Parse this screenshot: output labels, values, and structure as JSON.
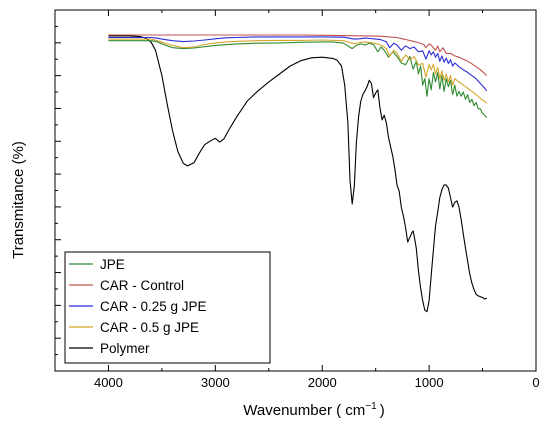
{
  "chart_data": {
    "type": "line",
    "title": "",
    "xlabel": "Wavenumber ( cm",
    "xlabel_sup": "−1",
    "xlabel_tail": ")",
    "ylabel": "Transmitance (%)",
    "xlim": [
      4500,
      0
    ],
    "ylim": [
      0,
      100
    ],
    "x_ticks": [
      4000,
      3000,
      2000,
      1000,
      0
    ],
    "y_ticks_shown": false,
    "grid": false,
    "legend_position": "bottom-left",
    "series": [
      {
        "name": "JPE",
        "color": "#2e8b2e",
        "x": [
          4000,
          3800,
          3600,
          3550,
          3500,
          3400,
          3300,
          3200,
          3000,
          2800,
          2600,
          2400,
          2200,
          2000,
          1900,
          1800,
          1720,
          1680,
          1640,
          1600,
          1560,
          1520,
          1480,
          1450,
          1420,
          1380,
          1340,
          1300,
          1260,
          1220,
          1180,
          1150,
          1120,
          1100,
          1080,
          1060,
          1040,
          1020,
          1000,
          980,
          960,
          940,
          920,
          900,
          880,
          860,
          840,
          820,
          800,
          780,
          760,
          740,
          720,
          700,
          680,
          660,
          640,
          620,
          600,
          580,
          560,
          540,
          520,
          500,
          480,
          460
        ],
        "y": [
          96,
          96,
          96,
          95.7,
          95,
          93.8,
          93.5,
          93.7,
          94.5,
          95,
          95.2,
          95.3,
          95.5,
          95.6,
          95.6,
          95.2,
          93.5,
          94.5,
          95,
          94.6,
          95.2,
          94.8,
          92.5,
          94,
          93,
          90.8,
          92.5,
          91,
          89,
          88.4,
          91,
          87,
          89.5,
          85.5,
          88,
          82,
          84,
          78.5,
          84,
          80.5,
          86,
          83,
          86,
          80.8,
          85,
          80,
          84,
          81.5,
          83.5,
          79,
          82,
          78.5,
          80,
          78.5,
          79.8,
          77.5,
          79,
          76.5,
          77.5,
          75.5,
          76.5,
          74.5,
          74.5,
          73,
          72.5,
          71.7
        ]
      },
      {
        "name": "CAR - Control",
        "color": "#c0504d",
        "x": [
          4000,
          3800,
          3600,
          3400,
          3200,
          3000,
          2800,
          2600,
          2400,
          2200,
          2000,
          1800,
          1600,
          1450,
          1380,
          1300,
          1250,
          1200,
          1150,
          1100,
          1050,
          1030,
          1000,
          980,
          940,
          920,
          900,
          870,
          840,
          800,
          760,
          720,
          680,
          640,
          600,
          560,
          520,
          480,
          460
        ],
        "y": [
          97.8,
          97.8,
          97.8,
          97.8,
          97.8,
          97.8,
          97.8,
          97.8,
          97.8,
          97.8,
          97.7,
          97.6,
          97.5,
          97.4,
          97.2,
          97,
          96.6,
          96.2,
          95.8,
          95.4,
          94.8,
          93.8,
          95,
          94.6,
          93,
          94.3,
          92.5,
          93.8,
          92,
          92,
          91.2,
          90.8,
          90.2,
          89.5,
          88.7,
          87.8,
          86.8,
          85.6,
          85
        ]
      },
      {
        "name": "CAR - 0.25 g JPE",
        "color": "#2b2bd8",
        "x": [
          4000,
          3800,
          3600,
          3550,
          3500,
          3400,
          3300,
          3200,
          3100,
          3000,
          2900,
          2800,
          2600,
          2400,
          2200,
          2000,
          1800,
          1700,
          1650,
          1600,
          1550,
          1500,
          1450,
          1400,
          1370,
          1330,
          1300,
          1260,
          1220,
          1180,
          1140,
          1100,
          1060,
          1030,
          1000,
          980,
          960,
          940,
          920,
          900,
          880,
          860,
          840,
          820,
          800,
          780,
          760,
          720,
          680,
          640,
          600,
          560,
          520,
          480,
          460
        ],
        "y": [
          97,
          97,
          97,
          96.8,
          96.5,
          96,
          95.7,
          95.9,
          96.2,
          96.6,
          96.9,
          97,
          97.2,
          97.2,
          97.2,
          97.2,
          97.1,
          96.5,
          96.6,
          96.8,
          96.7,
          96.5,
          96.3,
          95.6,
          93.8,
          95.2,
          94.6,
          93,
          94.4,
          93.5,
          94,
          92.5,
          92.8,
          90.2,
          92.8,
          91.5,
          92.5,
          90.8,
          92,
          89.5,
          91.2,
          89.2,
          90.5,
          88.8,
          90,
          88,
          89,
          87.8,
          86.8,
          86,
          85,
          84,
          82.5,
          81,
          80.2
        ]
      },
      {
        "name": "CAR - 0.5 g JPE",
        "color": "#d4a52c",
        "x": [
          4000,
          3800,
          3600,
          3550,
          3500,
          3400,
          3300,
          3200,
          3100,
          3000,
          2900,
          2800,
          2600,
          2400,
          2200,
          2000,
          1800,
          1700,
          1650,
          1600,
          1550,
          1500,
          1450,
          1400,
          1370,
          1330,
          1300,
          1260,
          1220,
          1180,
          1140,
          1100,
          1060,
          1030,
          1000,
          980,
          960,
          940,
          920,
          900,
          880,
          860,
          840,
          820,
          800,
          780,
          760,
          720,
          680,
          640,
          600,
          560,
          520,
          480,
          460
        ],
        "y": [
          96.5,
          96.5,
          96.5,
          96.1,
          95.5,
          94.5,
          93.8,
          94,
          94.8,
          95.3,
          95.6,
          95.8,
          96,
          96.1,
          96.1,
          96.2,
          96,
          95,
          95.4,
          95.6,
          95.4,
          95.1,
          94.6,
          93.5,
          91,
          93,
          92,
          89.5,
          91.5,
          90,
          91,
          88.4,
          88.8,
          84.5,
          88.5,
          86.8,
          88.5,
          85.5,
          87.5,
          84,
          86.5,
          83.5,
          85.5,
          83,
          85,
          82,
          84,
          83,
          82,
          81,
          80,
          79,
          77.8,
          76.8,
          76.2
        ]
      },
      {
        "name": "Polymer",
        "color": "#000000",
        "x": [
          4000,
          3800,
          3700,
          3650,
          3600,
          3560,
          3500,
          3450,
          3400,
          3350,
          3300,
          3260,
          3200,
          3150,
          3100,
          3050,
          3000,
          2960,
          2920,
          2880,
          2800,
          2700,
          2600,
          2500,
          2400,
          2300,
          2200,
          2100,
          2000,
          1900,
          1860,
          1820,
          1790,
          1760,
          1740,
          1720,
          1700,
          1680,
          1660,
          1640,
          1620,
          1600,
          1580,
          1560,
          1540,
          1520,
          1500,
          1480,
          1460,
          1440,
          1420,
          1400,
          1380,
          1360,
          1340,
          1320,
          1300,
          1280,
          1260,
          1240,
          1220,
          1200,
          1180,
          1160,
          1150,
          1140,
          1120,
          1100,
          1080,
          1060,
          1040,
          1020,
          1000,
          980,
          960,
          940,
          920,
          900,
          880,
          860,
          840,
          820,
          800,
          780,
          760,
          740,
          720,
          700,
          680,
          660,
          640,
          620,
          600,
          580,
          560,
          540,
          520,
          500,
          480,
          460
        ],
        "y": [
          97.5,
          97.5,
          97.3,
          96.8,
          95.5,
          93,
          85,
          76,
          67.5,
          61,
          57.3,
          56.5,
          57.5,
          60.5,
          63.2,
          64.3,
          65.2,
          64,
          65,
          67.5,
          72,
          77,
          80.2,
          83,
          85.5,
          88,
          89.7,
          90.6,
          90.8,
          90.4,
          89.8,
          88,
          82,
          70,
          52,
          44.5,
          50,
          64,
          72,
          76.8,
          79,
          80.2,
          81.5,
          83.5,
          82.5,
          78,
          79.5,
          80.5,
          75,
          71,
          72.5,
          70,
          65.5,
          62.5,
          59.5,
          55.5,
          50.5,
          48.5,
          43.5,
          40.5,
          37,
          32.5,
          34,
          35.5,
          36,
          34.5,
          30.5,
          23.5,
          18,
          14,
          11,
          10.5,
          14,
          22,
          30,
          37.5,
          42,
          46.5,
          49,
          50.5,
          50.5,
          49.5,
          46.5,
          43.5,
          45,
          45.5,
          43.5,
          39.5,
          35,
          30.5,
          26.5,
          22.5,
          19.5,
          17.5,
          16,
          15.5,
          15.2,
          15,
          14.5,
          14.8
        ]
      }
    ]
  }
}
